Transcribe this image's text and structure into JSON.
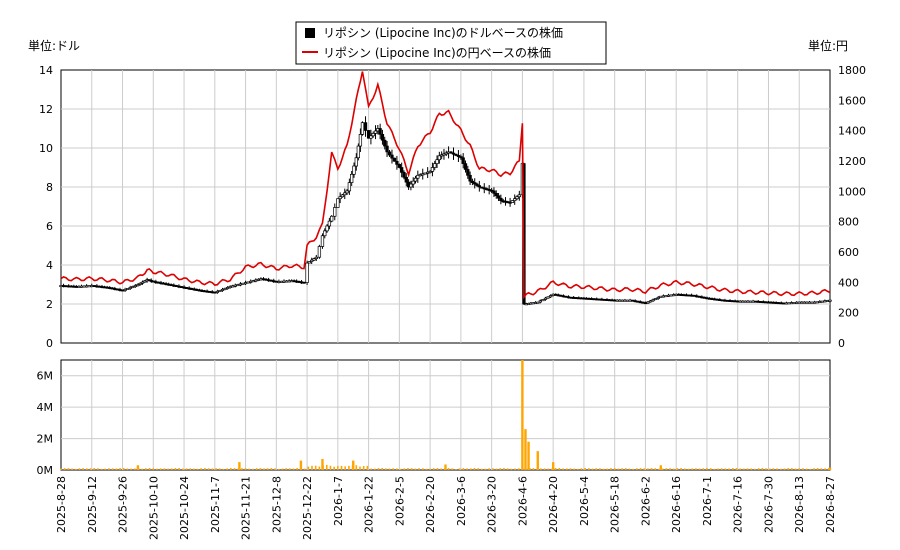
{
  "chart_data": {
    "type": "line",
    "legend": {
      "placement": "top-center",
      "items": [
        {
          "label": "リポシン (Lipocine Inc)のドルベースの株価",
          "marker": "square",
          "color": "#000000"
        },
        {
          "label": "リポシン (Lipocine Inc)の円ベースの株価",
          "marker": "line",
          "color": "#dd0000"
        }
      ]
    },
    "left_unit": "単位:ドル",
    "right_unit": "単位:円",
    "x_dates": [
      "2025-8-28",
      "2025-9-12",
      "2025-9-26",
      "2025-10-10",
      "2025-10-24",
      "2025-11-7",
      "2025-11-21",
      "2025-12-8",
      "2025-12-22",
      "2026-1-7",
      "2026-1-22",
      "2026-2-5",
      "2026-2-20",
      "2026-3-6",
      "2026-3-20",
      "2026-4-6",
      "2026-4-20",
      "2026-5-4",
      "2026-5-18",
      "2026-6-2",
      "2026-6-16",
      "2026-7-1",
      "2026-7-16",
      "2026-7-30",
      "2026-8-13",
      "2026-8-27"
    ],
    "price_axis_left": {
      "ylim": [
        0,
        14
      ],
      "ticks": [
        "0",
        "2",
        "4",
        "6",
        "8",
        "10",
        "12",
        "14"
      ]
    },
    "price_axis_right": {
      "ylim": [
        0,
        1800
      ],
      "ticks": [
        "0",
        "200",
        "400",
        "600",
        "800",
        "1000",
        "1200",
        "1400",
        "1600",
        "1800"
      ]
    },
    "volume_axis": {
      "ylim": [
        0,
        7000000
      ],
      "ticks": [
        "0M",
        "2M",
        "4M",
        "6M"
      ]
    },
    "grid": true,
    "colors": {
      "usd": "#000000",
      "jpy": "#dd0000",
      "volume": "#ffa500",
      "grid": "#cccccc"
    },
    "usd_close_points": [
      [
        0,
        2.95
      ],
      [
        0.5,
        2.9
      ],
      [
        1,
        2.95
      ],
      [
        1.5,
        2.85
      ],
      [
        2,
        2.7
      ],
      [
        2.5,
        3.0
      ],
      [
        2.8,
        3.25
      ],
      [
        3,
        3.15
      ],
      [
        3.5,
        3.0
      ],
      [
        4,
        2.85
      ],
      [
        4.5,
        2.7
      ],
      [
        5,
        2.6
      ],
      [
        5.5,
        2.9
      ],
      [
        6,
        3.1
      ],
      [
        6.5,
        3.3
      ],
      [
        7,
        3.15
      ],
      [
        7.5,
        3.2
      ],
      [
        7.9,
        3.1
      ],
      [
        8,
        4.1
      ],
      [
        8.3,
        4.4
      ],
      [
        8.5,
        5.5
      ],
      [
        8.8,
        6.5
      ],
      [
        9,
        7.4
      ],
      [
        9.3,
        7.8
      ],
      [
        9.6,
        9.5
      ],
      [
        9.8,
        11.3
      ],
      [
        10,
        10.5
      ],
      [
        10.3,
        11.0
      ],
      [
        10.6,
        9.8
      ],
      [
        11,
        9.0
      ],
      [
        11.3,
        8.0
      ],
      [
        11.6,
        8.6
      ],
      [
        12,
        8.8
      ],
      [
        12.3,
        9.6
      ],
      [
        12.6,
        9.8
      ],
      [
        13,
        9.5
      ],
      [
        13.3,
        8.3
      ],
      [
        13.6,
        8.0
      ],
      [
        14,
        7.8
      ],
      [
        14.3,
        7.3
      ],
      [
        14.6,
        7.2
      ],
      [
        14.9,
        7.6
      ],
      [
        15,
        9.2
      ],
      [
        15.05,
        2.0
      ],
      [
        15.5,
        2.1
      ],
      [
        16,
        2.5
      ],
      [
        16.5,
        2.35
      ],
      [
        17,
        2.3
      ],
      [
        17.5,
        2.25
      ],
      [
        18,
        2.2
      ],
      [
        18.5,
        2.2
      ],
      [
        19,
        2.05
      ],
      [
        19.5,
        2.4
      ],
      [
        20,
        2.5
      ],
      [
        20.5,
        2.45
      ],
      [
        21,
        2.3
      ],
      [
        21.5,
        2.2
      ],
      [
        22,
        2.15
      ],
      [
        22.5,
        2.15
      ],
      [
        23,
        2.1
      ],
      [
        23.5,
        2.05
      ],
      [
        24,
        2.1
      ],
      [
        24.5,
        2.1
      ],
      [
        25,
        2.2
      ]
    ],
    "jpy_close_points": [
      [
        0,
        425
      ],
      [
        0.5,
        420
      ],
      [
        1,
        425
      ],
      [
        1.5,
        415
      ],
      [
        2,
        400
      ],
      [
        2.5,
        430
      ],
      [
        2.8,
        480
      ],
      [
        3,
        470
      ],
      [
        3.5,
        450
      ],
      [
        4,
        420
      ],
      [
        4.5,
        400
      ],
      [
        5,
        390
      ],
      [
        5.5,
        420
      ],
      [
        6,
        500
      ],
      [
        6.5,
        520
      ],
      [
        7,
        490
      ],
      [
        7.5,
        510
      ],
      [
        7.9,
        500
      ],
      [
        8,
        640
      ],
      [
        8.3,
        700
      ],
      [
        8.5,
        780
      ],
      [
        8.8,
        1250
      ],
      [
        9,
        1150
      ],
      [
        9.3,
        1300
      ],
      [
        9.6,
        1600
      ],
      [
        9.8,
        1800
      ],
      [
        10,
        1550
      ],
      [
        10.3,
        1700
      ],
      [
        10.6,
        1450
      ],
      [
        11,
        1280
      ],
      [
        11.3,
        1120
      ],
      [
        11.6,
        1300
      ],
      [
        12,
        1390
      ],
      [
        12.3,
        1510
      ],
      [
        12.6,
        1520
      ],
      [
        13,
        1400
      ],
      [
        13.3,
        1300
      ],
      [
        13.6,
        1150
      ],
      [
        14,
        1140
      ],
      [
        14.3,
        1110
      ],
      [
        14.6,
        1120
      ],
      [
        14.9,
        1200
      ],
      [
        15,
        1460
      ],
      [
        15.05,
        310
      ],
      [
        15.5,
        340
      ],
      [
        16,
        400
      ],
      [
        16.5,
        375
      ],
      [
        17,
        370
      ],
      [
        17.5,
        360
      ],
      [
        18,
        350
      ],
      [
        18.5,
        355
      ],
      [
        19,
        340
      ],
      [
        19.5,
        380
      ],
      [
        20,
        400
      ],
      [
        20.5,
        390
      ],
      [
        21,
        370
      ],
      [
        21.5,
        350
      ],
      [
        22,
        340
      ],
      [
        22.5,
        335
      ],
      [
        23,
        330
      ],
      [
        23.5,
        325
      ],
      [
        24,
        325
      ],
      [
        24.5,
        330
      ],
      [
        25,
        345
      ]
    ],
    "volume_spikes": [
      [
        2.5,
        300000
      ],
      [
        5.8,
        500000
      ],
      [
        7.8,
        600000
      ],
      [
        8.5,
        700000
      ],
      [
        9.5,
        600000
      ],
      [
        12.5,
        350000
      ],
      [
        15.0,
        7000000
      ],
      [
        15.1,
        2600000
      ],
      [
        15.2,
        1800000
      ],
      [
        15.5,
        1200000
      ],
      [
        16,
        500000
      ],
      [
        19.5,
        300000
      ],
      [
        25,
        150000
      ]
    ]
  }
}
